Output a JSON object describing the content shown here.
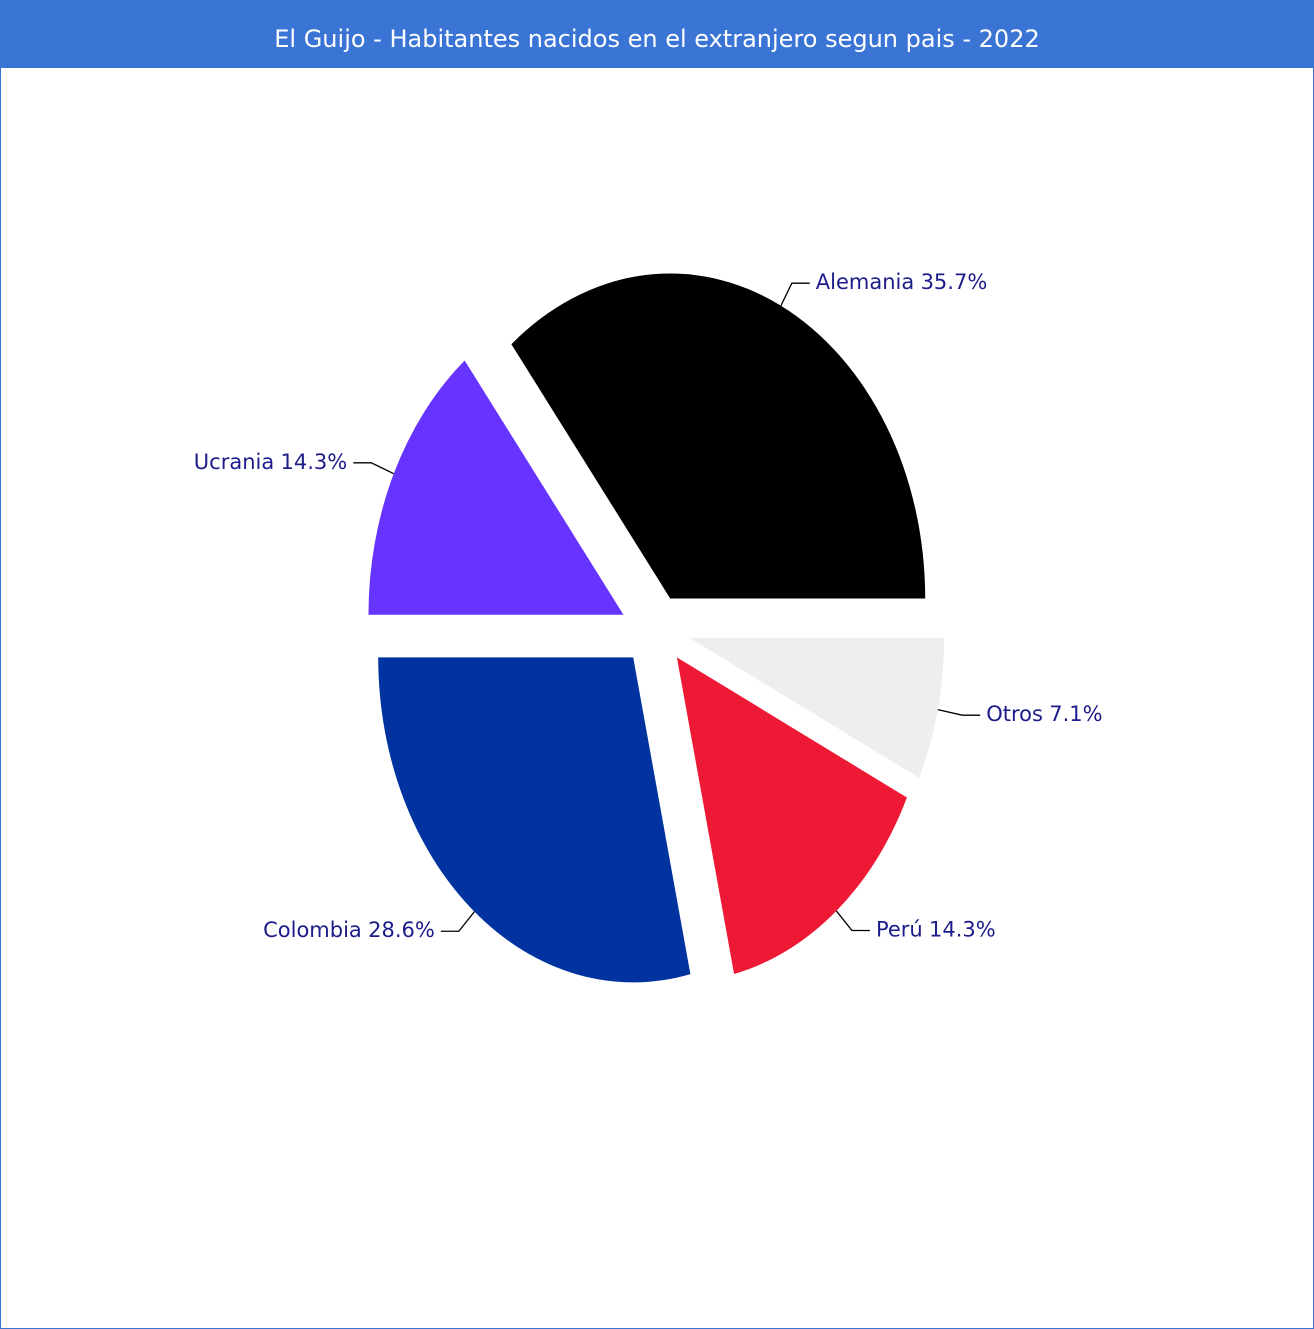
{
  "chart_data": {
    "type": "pie",
    "title": "El Guijo - Habitantes nacidos en el extranjero segun pais - 2022",
    "categories": [
      "Alemania",
      "Ucrania",
      "Colombia",
      "Perú",
      "Otros"
    ],
    "values": [
      35.7,
      14.3,
      28.6,
      14.3,
      7.1
    ],
    "value_labels": [
      "35.7%",
      "14.3%",
      "28.6%",
      "14.3%",
      "7.1%"
    ],
    "colors": [
      "#000000",
      "#6633ff",
      "#0033a0",
      "#ee1a35",
      "#eeeeee"
    ]
  }
}
